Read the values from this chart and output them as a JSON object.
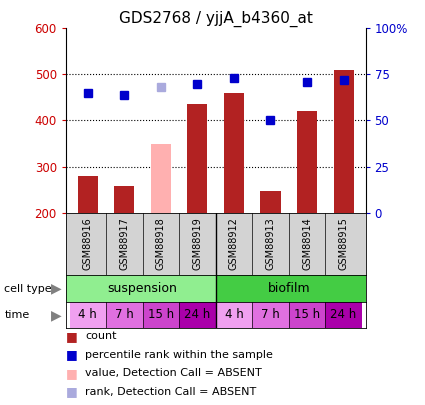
{
  "title": "GDS2768 / yjjA_b4360_at",
  "samples": [
    "GSM88916",
    "GSM88917",
    "GSM88918",
    "GSM88919",
    "GSM88912",
    "GSM88913",
    "GSM88914",
    "GSM88915"
  ],
  "count_values": [
    280,
    258,
    350,
    435,
    460,
    248,
    420,
    510
  ],
  "count_absent": [
    false,
    false,
    true,
    false,
    false,
    false,
    false,
    false
  ],
  "rank_values": [
    65,
    64,
    68,
    70,
    73,
    50,
    71,
    72
  ],
  "rank_absent": [
    false,
    false,
    true,
    false,
    false,
    false,
    false,
    false
  ],
  "ylim_left": [
    200,
    600
  ],
  "ylim_right": [
    0,
    100
  ],
  "yticks_left": [
    200,
    300,
    400,
    500,
    600
  ],
  "yticks_right": [
    0,
    25,
    50,
    75,
    100
  ],
  "ytick_labels_right": [
    "0",
    "25",
    "50",
    "75",
    "100%"
  ],
  "bar_color": "#b22222",
  "bar_color_absent": "#ffb0b0",
  "rank_color": "#0000cc",
  "rank_color_absent": "#aaaadd",
  "bar_width": 0.55,
  "cell_type_labels": [
    "suspension",
    "biofilm"
  ],
  "cell_type_color_light": "#90ee90",
  "cell_type_color_dark": "#44cc44",
  "time_labels": [
    "4 h",
    "7 h",
    "15 h",
    "24 h",
    "4 h",
    "7 h",
    "15 h",
    "24 h"
  ],
  "time_colors": [
    "#f0a0f0",
    "#e070e0",
    "#cc44cc",
    "#aa00aa",
    "#f0a0f0",
    "#e070e0",
    "#cc44cc",
    "#aa00aa"
  ],
  "label_color_left": "#cc0000",
  "label_color_right": "#0000cc",
  "title_fontsize": 11,
  "tick_fontsize": 8.5,
  "legend_fontsize": 8,
  "sample_fontsize": 7,
  "label_gray": "#d3d3d3",
  "legend_items": [
    {
      "color": "#b22222",
      "label": "count"
    },
    {
      "color": "#0000cc",
      "label": "percentile rank within the sample"
    },
    {
      "color": "#ffb0b0",
      "label": "value, Detection Call = ABSENT"
    },
    {
      "color": "#aaaadd",
      "label": "rank, Detection Call = ABSENT"
    }
  ]
}
